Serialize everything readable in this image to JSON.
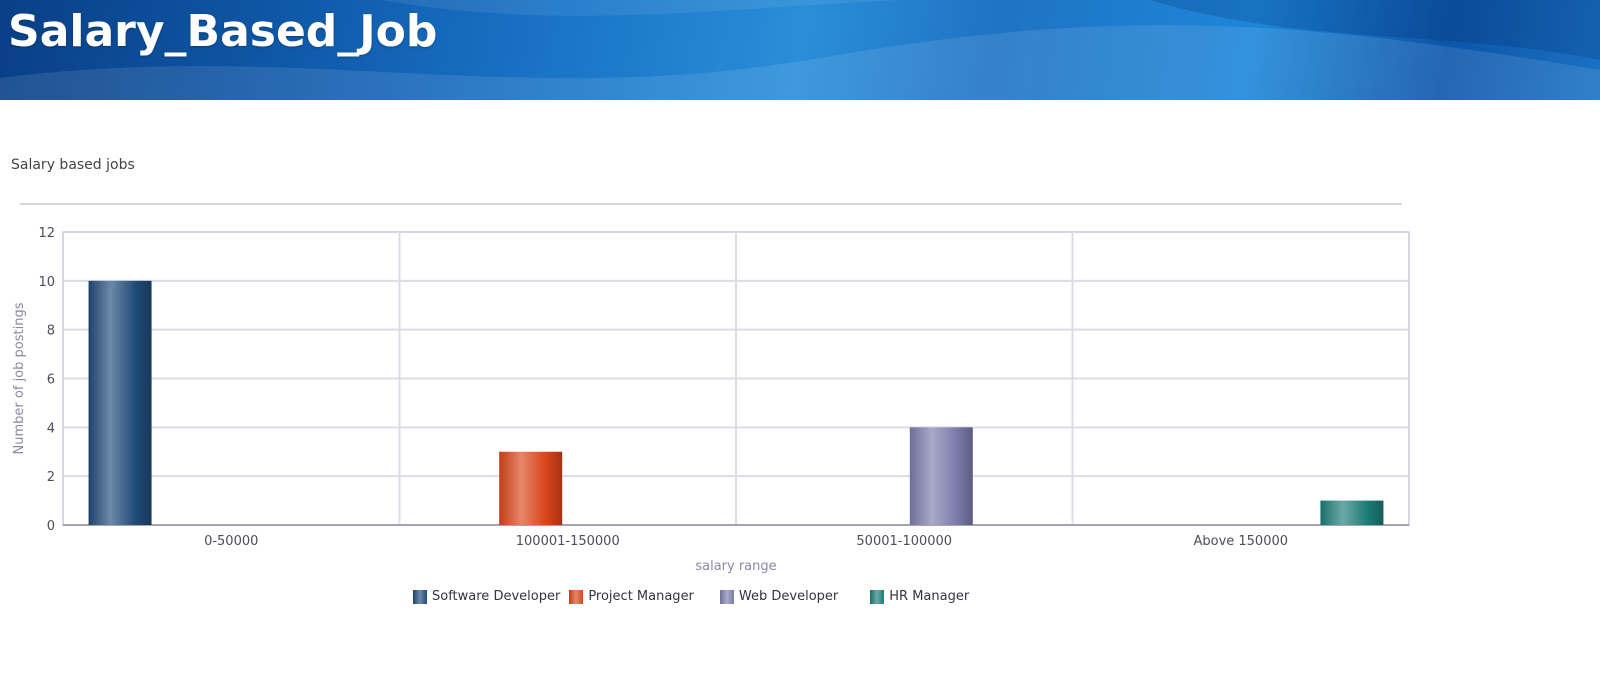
{
  "page": {
    "title": "Salary_Based_Job"
  },
  "chart_data": {
    "type": "bar",
    "title": "Salary based jobs",
    "xlabel": "salary range",
    "ylabel": "Number of job postings",
    "categories": [
      "0-50000",
      "100001-150000",
      "50001-100000",
      "Above 150000"
    ],
    "ylim": [
      0,
      12
    ],
    "yticks": [
      "0",
      "2",
      "4",
      "6",
      "8",
      "10",
      "12"
    ],
    "grid": true,
    "legend_position": "bottom",
    "series": [
      {
        "name": "Software Developer",
        "color": "#1f4a78",
        "values": [
          10,
          null,
          null,
          null
        ]
      },
      {
        "name": "Project Manager",
        "color": "#d9441a",
        "values": [
          null,
          3,
          null,
          null
        ]
      },
      {
        "name": "Web Developer",
        "color": "#7b7aab",
        "values": [
          null,
          null,
          4,
          null
        ]
      },
      {
        "name": "HR Manager",
        "color": "#1c7b76",
        "values": [
          null,
          null,
          null,
          1
        ]
      }
    ]
  }
}
